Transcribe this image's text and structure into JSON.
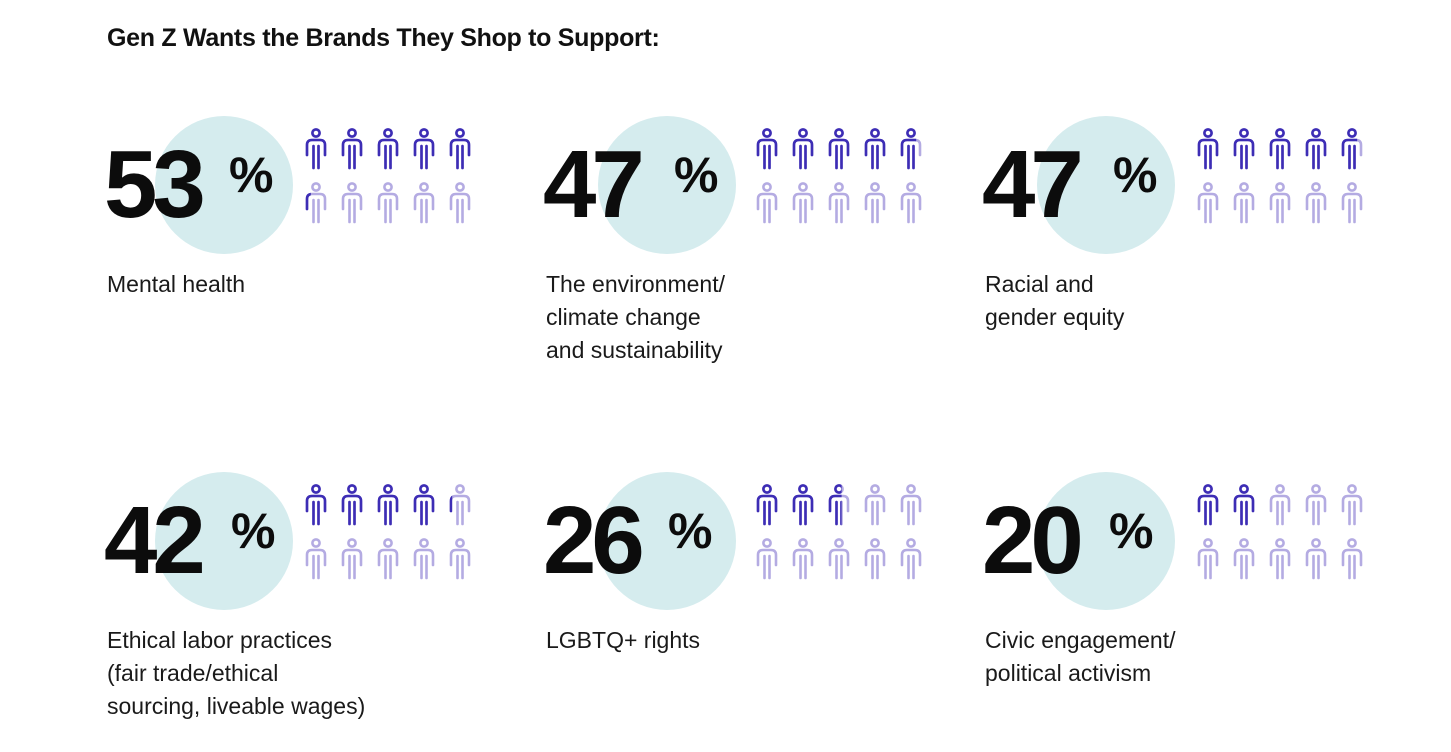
{
  "title": "Gen Z Wants the Brands They Shop to Support:",
  "colors": {
    "circle": "#d5ecee",
    "filled_person": "#3d2db5",
    "empty_person": "#b4abe2",
    "text": "#111111"
  },
  "icon_name": "person-icon",
  "chart_data": {
    "type": "pictogram",
    "title": "Gen Z Wants the Brands They Shop to Support:",
    "unit": "%",
    "icons_per_stat": 10,
    "categories": [
      "Mental health",
      "The environment/ climate change and sustainability",
      "Racial and gender equity",
      "Ethical labor practices (fair trade/ethical sourcing, liveable wages)",
      "LGBTQ+ rights",
      "Civic engagement/ political activism"
    ],
    "values": [
      53,
      47,
      47,
      42,
      26,
      20
    ]
  },
  "stats": [
    {
      "value": "53",
      "sign": "%",
      "label": "Mental health"
    },
    {
      "value": "47",
      "sign": "%",
      "label": "The environment/\nclimate change\nand sustainability"
    },
    {
      "value": "47",
      "sign": "%",
      "label": "Racial and\ngender equity"
    },
    {
      "value": "42",
      "sign": "%",
      "label": "Ethical labor practices\n(fair trade/ethical\nsourcing, liveable wages)"
    },
    {
      "value": "26",
      "sign": "%",
      "label": "LGBTQ+ rights"
    },
    {
      "value": "20",
      "sign": "%",
      "label": "Civic engagement/\npolitical activism"
    }
  ]
}
